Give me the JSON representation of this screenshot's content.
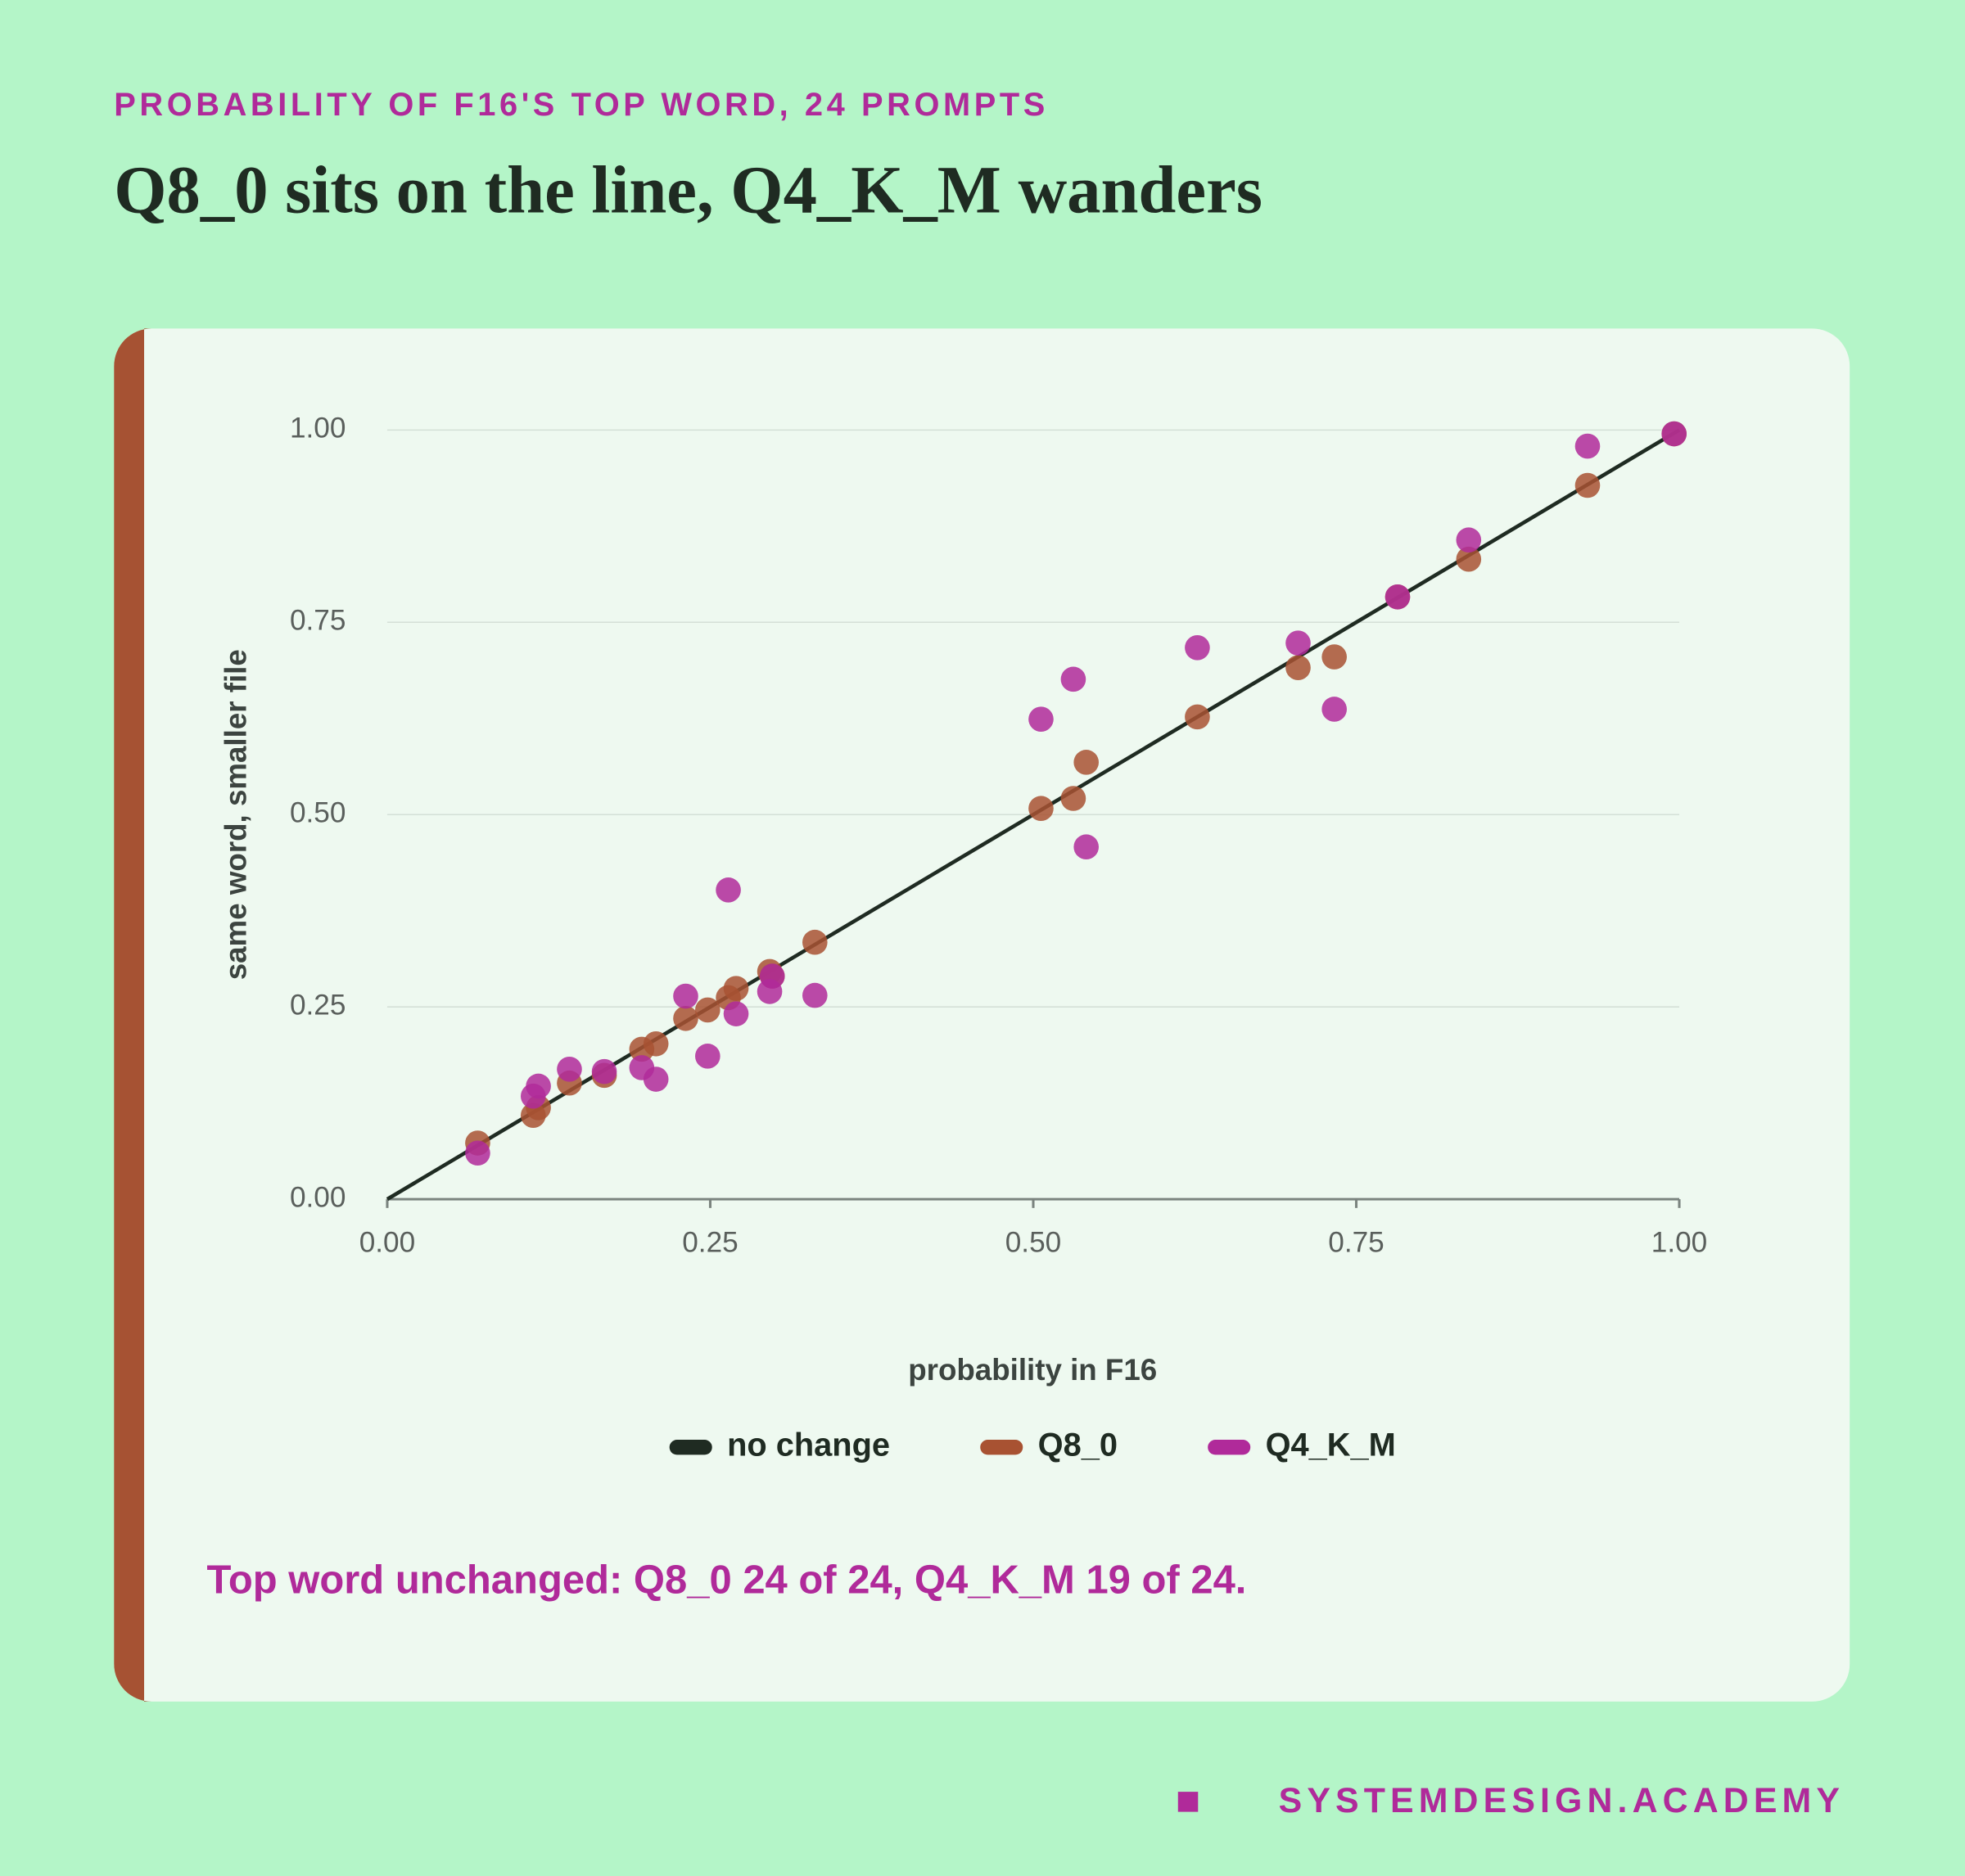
{
  "page": {
    "kicker": "PROBABILITY OF F16'S TOP WORD, 24 PROMPTS",
    "brand": "SYSTEMDESIGN.ACADEMY"
  },
  "chart_data": {
    "type": "scatter",
    "title": "Q8_0 sits on the line, Q4_K_M wanders",
    "xlabel": "probability in F16",
    "ylabel": "same word, smaller file",
    "note": "Top word unchanged: Q8_0 24 of 24, Q4_K_M 19 of 24.",
    "reference_line": {
      "name": "no change",
      "color": "#1f2b22"
    },
    "x": [
      0.07,
      0.113,
      0.117,
      0.141,
      0.168,
      0.197,
      0.208,
      0.231,
      0.248,
      0.264,
      0.27,
      0.296,
      0.298,
      0.331,
      0.506,
      0.531,
      0.541,
      0.627,
      0.705,
      0.733,
      0.782,
      0.837,
      0.929,
      0.996
    ],
    "series": [
      {
        "name": "Q8_0",
        "color": "#a85232",
        "values": [
          0.073,
          0.109,
          0.119,
          0.151,
          0.161,
          0.195,
          0.202,
          0.235,
          0.246,
          0.262,
          0.274,
          0.296,
          0.29,
          0.334,
          0.508,
          0.521,
          0.568,
          0.627,
          0.691,
          0.705,
          0.783,
          0.832,
          0.928,
          0.995
        ]
      },
      {
        "name": "Q4_K_M",
        "color": "#b02a9a",
        "values": [
          0.06,
          0.134,
          0.147,
          0.169,
          0.166,
          0.171,
          0.156,
          0.264,
          0.186,
          0.402,
          0.241,
          0.27,
          0.29,
          0.265,
          0.624,
          0.676,
          0.458,
          0.717,
          0.723,
          0.637,
          0.783,
          0.857,
          0.979,
          0.995
        ]
      }
    ],
    "xlim": [
      0,
      1
    ],
    "ylim": [
      0,
      1
    ],
    "xticks": [
      {
        "value": 0,
        "label": "0.00"
      },
      {
        "value": 0.25,
        "label": "0.25"
      },
      {
        "value": 0.5,
        "label": "0.50"
      },
      {
        "value": 0.75,
        "label": "0.75"
      },
      {
        "value": 1,
        "label": "1.00"
      }
    ],
    "yticks": [
      {
        "value": 0,
        "label": "0.00"
      },
      {
        "value": 0.25,
        "label": "0.25"
      },
      {
        "value": 0.5,
        "label": "0.50"
      },
      {
        "value": 0.75,
        "label": "0.75"
      },
      {
        "value": 1,
        "label": "1.00"
      }
    ],
    "grid": true
  }
}
